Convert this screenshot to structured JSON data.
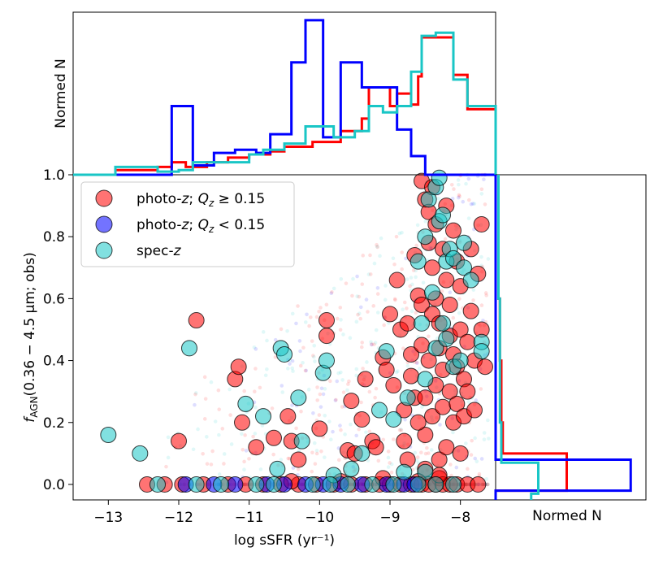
{
  "chart_data": [
    {
      "panel": "main",
      "type": "scatter",
      "xlabel": "log sSFR (yr⁻¹)",
      "ylabel": "f_AGN(0.36 − 4.5 μm; obs)",
      "ylabel_parts": {
        "f": "f",
        "sub": "AGN",
        "rest": "(0.36 − 4.5 μm;  obs)"
      },
      "xlim": [
        -13.5,
        -7.5
      ],
      "ylim": [
        -0.05,
        1.0
      ],
      "xticks": [
        -13,
        -12,
        -11,
        -10,
        -9,
        -8
      ],
      "xtick_labels": [
        "−13",
        "−12",
        "−11",
        "−10",
        "−9",
        "−8"
      ],
      "yticks": [
        0.0,
        0.2,
        0.4,
        0.6,
        0.8,
        1.0
      ],
      "ytick_labels": [
        "0.0",
        "0.2",
        "0.4",
        "0.6",
        "0.8",
        "1.0"
      ],
      "grid": false,
      "legend_position": "top-left",
      "colors": {
        "red": "#ff0000",
        "blue": "#0000ff",
        "cyan": "#19c6c6"
      },
      "legend": [
        {
          "key": "red",
          "color": "#ff0000",
          "label_main": "photo-",
          "label_z": "z",
          "label_rest": "; ",
          "label_q": "Q",
          "label_qsub": "z",
          "label_tail": " ≥ 0.15"
        },
        {
          "key": "blue",
          "color": "#0000ff",
          "label_main": "photo-",
          "label_z": "z",
          "label_rest": "; ",
          "label_q": "Q",
          "label_qsub": "z",
          "label_tail": " < 0.15"
        },
        {
          "key": "cyan",
          "color": "#19c6c6",
          "label_main": "spec-",
          "label_z": "z",
          "label_rest": "",
          "label_q": "",
          "label_qsub": "",
          "label_tail": ""
        }
      ],
      "series": [
        {
          "key": "red",
          "points": [
            [
              -12.0,
              0.14
            ],
            [
              -11.75,
              0.53
            ],
            [
              -11.2,
              0.34
            ],
            [
              -11.15,
              0.38
            ],
            [
              -11.1,
              0.2
            ],
            [
              -10.9,
              0.12
            ],
            [
              -10.65,
              0.15
            ],
            [
              -10.45,
              0.22
            ],
            [
              -10.4,
              0.14
            ],
            [
              -10.3,
              0.08
            ],
            [
              -10.0,
              0.18
            ],
            [
              -9.9,
              0.48
            ],
            [
              -9.9,
              0.53
            ],
            [
              -9.6,
              0.11
            ],
            [
              -9.55,
              0.27
            ],
            [
              -9.4,
              0.21
            ],
            [
              -9.35,
              0.34
            ],
            [
              -9.25,
              0.14
            ],
            [
              -9.2,
              0.12
            ],
            [
              -9.1,
              0.41
            ],
            [
              -9.05,
              0.37
            ],
            [
              -9.0,
              0.55
            ],
            [
              -8.95,
              0.32
            ],
            [
              -8.9,
              0.66
            ],
            [
              -8.85,
              0.5
            ],
            [
              -8.8,
              0.14
            ],
            [
              -8.75,
              0.08
            ],
            [
              -8.75,
              0.52
            ],
            [
              -8.7,
              0.42
            ],
            [
              -8.7,
              0.35
            ],
            [
              -8.65,
              0.28
            ],
            [
              -8.65,
              0.74
            ],
            [
              -8.6,
              0.61
            ],
            [
              -8.55,
              0.98
            ],
            [
              -8.55,
              0.58
            ],
            [
              -8.55,
              0.45
            ],
            [
              -8.5,
              0.92
            ],
            [
              -8.5,
              0.28
            ],
            [
              -8.5,
              0.16
            ],
            [
              -8.45,
              0.88
            ],
            [
              -8.45,
              0.78
            ],
            [
              -8.45,
              0.4
            ],
            [
              -8.4,
              0.96
            ],
            [
              -8.4,
              0.7
            ],
            [
              -8.4,
              0.55
            ],
            [
              -8.4,
              0.22
            ],
            [
              -8.35,
              0.84
            ],
            [
              -8.35,
              0.6
            ],
            [
              -8.35,
              0.32
            ],
            [
              -8.3,
              0.52
            ],
            [
              -8.3,
              0.44
            ],
            [
              -8.3,
              0.08
            ],
            [
              -8.25,
              0.76
            ],
            [
              -8.25,
              0.37
            ],
            [
              -8.25,
              0.25
            ],
            [
              -8.2,
              0.9
            ],
            [
              -8.2,
              0.66
            ],
            [
              -8.2,
              0.12
            ],
            [
              -8.15,
              0.58
            ],
            [
              -8.15,
              0.48
            ],
            [
              -8.15,
              0.3
            ],
            [
              -8.1,
              0.82
            ],
            [
              -8.1,
              0.42
            ],
            [
              -8.1,
              0.2
            ],
            [
              -8.05,
              0.72
            ],
            [
              -8.05,
              0.38
            ],
            [
              -8.05,
              0.26
            ],
            [
              -8.0,
              0.64
            ],
            [
              -8.0,
              0.5
            ],
            [
              -7.95,
              0.34
            ],
            [
              -7.95,
              0.22
            ],
            [
              -7.9,
              0.46
            ],
            [
              -7.9,
              0.3
            ],
            [
              -7.85,
              0.76
            ],
            [
              -7.85,
              0.56
            ],
            [
              -7.8,
              0.4
            ],
            [
              -7.8,
              0.24
            ],
            [
              -7.7,
              0.84
            ],
            [
              -7.75,
              0.68
            ],
            [
              -7.7,
              0.5
            ],
            [
              -7.65,
              0.38
            ],
            [
              -8.6,
              0.2
            ],
            [
              -8.8,
              0.24
            ],
            [
              -8.5,
              0.05
            ],
            [
              -8.3,
              0.02
            ],
            [
              -8.0,
              0.1
            ],
            [
              -9.5,
              0.1
            ],
            [
              -12.45,
              0.0
            ],
            [
              -12.2,
              0.0
            ],
            [
              -11.95,
              0.0
            ],
            [
              -11.65,
              0.0
            ],
            [
              -11.3,
              0.0
            ],
            [
              -11.05,
              0.0
            ],
            [
              -10.8,
              0.0
            ],
            [
              -10.55,
              0.0
            ],
            [
              -10.3,
              0.0
            ],
            [
              -10.05,
              0.0
            ],
            [
              -9.8,
              0.0
            ],
            [
              -9.55,
              0.0
            ],
            [
              -9.35,
              0.0
            ],
            [
              -9.15,
              0.0
            ],
            [
              -9.0,
              0.0
            ],
            [
              -8.85,
              0.0
            ],
            [
              -8.7,
              0.0
            ],
            [
              -8.55,
              0.0
            ],
            [
              -8.45,
              0.0
            ],
            [
              -8.35,
              0.0
            ],
            [
              -8.25,
              0.0
            ],
            [
              -8.15,
              0.0
            ],
            [
              -8.05,
              0.0
            ],
            [
              -7.9,
              0.0
            ],
            [
              -7.75,
              0.0
            ],
            [
              -9.1,
              0.02
            ],
            [
              -8.6,
              0.01
            ],
            [
              -8.3,
              0.03
            ],
            [
              -10.4,
              0.01
            ],
            [
              -9.7,
              0.01
            ]
          ]
        },
        {
          "key": "blue",
          "points": [
            [
              -11.9,
              0.0
            ],
            [
              -11.5,
              0.0
            ],
            [
              -11.2,
              0.0
            ],
            [
              -10.75,
              0.0
            ],
            [
              -10.5,
              0.0
            ],
            [
              -10.2,
              0.0
            ],
            [
              -9.95,
              0.0
            ],
            [
              -9.7,
              0.0
            ],
            [
              -9.4,
              0.0
            ],
            [
              -9.05,
              0.0
            ],
            [
              -8.8,
              0.0
            ],
            [
              -8.65,
              0.0
            ]
          ]
        },
        {
          "key": "cyan",
          "points": [
            [
              -13.0,
              0.16
            ],
            [
              -12.55,
              0.1
            ],
            [
              -11.85,
              0.44
            ],
            [
              -11.05,
              0.26
            ],
            [
              -10.8,
              0.22
            ],
            [
              -10.6,
              0.05
            ],
            [
              -10.55,
              0.44
            ],
            [
              -10.5,
              0.42
            ],
            [
              -10.3,
              0.28
            ],
            [
              -10.25,
              0.14
            ],
            [
              -9.95,
              0.36
            ],
            [
              -9.9,
              0.4
            ],
            [
              -9.55,
              0.05
            ],
            [
              -9.4,
              0.1
            ],
            [
              -9.15,
              0.24
            ],
            [
              -9.05,
              0.43
            ],
            [
              -8.95,
              0.21
            ],
            [
              -8.75,
              0.28
            ],
            [
              -8.6,
              0.72
            ],
            [
              -8.55,
              0.52
            ],
            [
              -8.5,
              0.8
            ],
            [
              -8.5,
              0.34
            ],
            [
              -8.45,
              0.92
            ],
            [
              -8.4,
              0.62
            ],
            [
              -8.35,
              0.96
            ],
            [
              -8.35,
              0.44
            ],
            [
              -8.3,
              0.99
            ],
            [
              -8.3,
              0.85
            ],
            [
              -8.25,
              0.87
            ],
            [
              -8.25,
              0.52
            ],
            [
              -8.2,
              0.72
            ],
            [
              -8.2,
              0.47
            ],
            [
              -8.15,
              0.76
            ],
            [
              -8.1,
              0.73
            ],
            [
              -8.1,
              0.38
            ],
            [
              -8.0,
              0.4
            ],
            [
              -7.95,
              0.7
            ],
            [
              -7.95,
              0.78
            ],
            [
              -7.85,
              0.66
            ],
            [
              -7.7,
              0.46
            ],
            [
              -7.7,
              0.43
            ],
            [
              -8.5,
              0.04
            ],
            [
              -8.8,
              0.04
            ],
            [
              -9.8,
              0.03
            ],
            [
              -12.3,
              0.0
            ],
            [
              -11.75,
              0.0
            ],
            [
              -11.4,
              0.0
            ],
            [
              -10.9,
              0.0
            ],
            [
              -10.65,
              0.0
            ],
            [
              -10.1,
              0.0
            ],
            [
              -9.85,
              0.0
            ],
            [
              -9.6,
              0.0
            ],
            [
              -9.25,
              0.0
            ],
            [
              -8.95,
              0.0
            ],
            [
              -8.6,
              0.0
            ],
            [
              -8.35,
              0.0
            ],
            [
              -8.1,
              0.0
            ]
          ]
        }
      ],
      "faint_points_note": ""
    },
    {
      "panel": "top",
      "type": "step-histogram",
      "ylabel": "Normed N",
      "xlim": [
        -13.5,
        -7.5
      ],
      "series": [
        {
          "key": "red",
          "edges": [
            -13.5,
            -12.9,
            -12.3,
            -12.1,
            -11.9,
            -11.6,
            -11.3,
            -11.0,
            -10.7,
            -10.5,
            -10.1,
            -9.7,
            -9.4,
            -9.3,
            -9.0,
            -8.9,
            -8.7,
            -8.6,
            -8.55,
            -8.1,
            -7.9,
            -7.5
          ],
          "heights": [
            0.0,
            0.03,
            0.05,
            0.08,
            0.05,
            0.08,
            0.11,
            0.13,
            0.15,
            0.18,
            0.21,
            0.28,
            0.36,
            0.56,
            0.44,
            0.52,
            0.45,
            0.63,
            0.88,
            0.64,
            0.42,
            0.0
          ]
        },
        {
          "key": "blue",
          "edges": [
            -13.5,
            -12.1,
            -11.8,
            -11.5,
            -11.2,
            -10.9,
            -10.7,
            -10.4,
            -10.2,
            -9.95,
            -9.7,
            -9.4,
            -9.2,
            -8.9,
            -8.7,
            -8.5,
            -7.5
          ],
          "heights": [
            0.0,
            0.44,
            0.06,
            0.14,
            0.16,
            0.14,
            0.26,
            0.72,
            0.99,
            0.24,
            0.72,
            0.56,
            0.56,
            0.29,
            0.12,
            0.0
          ]
        },
        {
          "key": "cyan",
          "edges": [
            -13.5,
            -12.9,
            -12.3,
            -12.0,
            -11.8,
            -11.4,
            -11.0,
            -10.8,
            -10.5,
            -10.2,
            -9.8,
            -9.5,
            -9.3,
            -9.1,
            -8.9,
            -8.7,
            -8.55,
            -8.35,
            -8.1,
            -7.9,
            -7.5
          ],
          "heights": [
            0.0,
            0.05,
            0.02,
            0.03,
            0.08,
            0.08,
            0.13,
            0.16,
            0.2,
            0.31,
            0.24,
            0.28,
            0.44,
            0.4,
            0.44,
            0.66,
            0.89,
            0.91,
            0.61,
            0.44,
            0.0
          ]
        }
      ]
    },
    {
      "panel": "right",
      "type": "step-histogram-horizontal",
      "xlabel": "Normed N",
      "ylim": [
        -0.05,
        1.0
      ],
      "series": [
        {
          "key": "red",
          "edges": [
            -0.05,
            -0.02,
            0.02,
            0.05,
            0.1,
            0.2,
            0.4,
            0.6,
            0.8,
            1.0
          ],
          "widths": [
            0.0,
            0.5,
            0.5,
            0.5,
            0.05,
            0.04,
            0.03,
            0.02,
            0.02
          ]
        },
        {
          "key": "blue",
          "edges": [
            -0.05,
            -0.02,
            0.02,
            0.08,
            1.0
          ],
          "widths": [
            0.0,
            0.95,
            0.95,
            0.0
          ]
        },
        {
          "key": "cyan",
          "edges": [
            -0.05,
            -0.03,
            0.07,
            0.1,
            0.2,
            0.4,
            0.6,
            0.8,
            1.0
          ],
          "widths": [
            0.25,
            0.3,
            0.04,
            0.04,
            0.03,
            0.03,
            0.02,
            0.02
          ]
        }
      ]
    }
  ]
}
